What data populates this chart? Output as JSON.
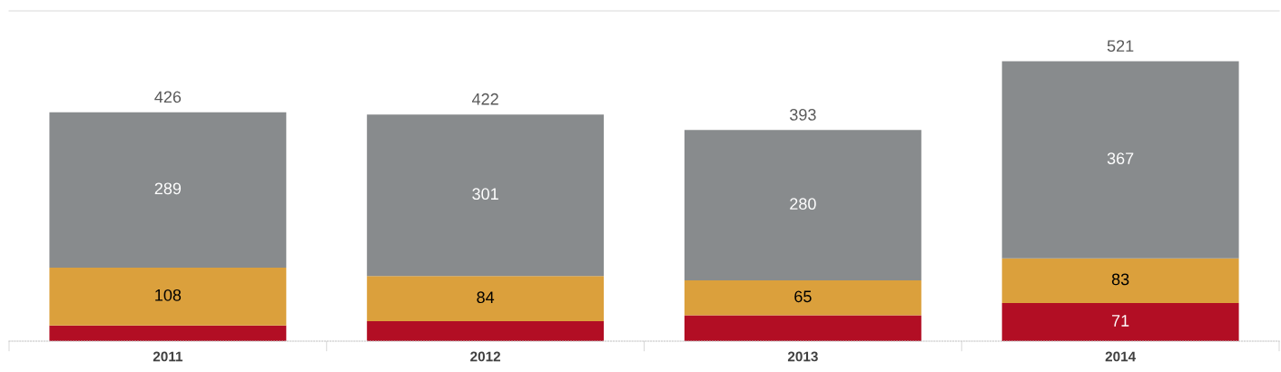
{
  "chart_data": {
    "type": "bar",
    "stacked": true,
    "data_labels": false,
    "grid": false,
    "legend": false,
    "tick_labels": "x",
    "categories": [
      "2011",
      "2012",
      "2013",
      "2014"
    ],
    "series": [
      {
        "color": "#b20e24",
        "values": [
          29,
          37,
          48,
          71
        ],
        "value_labels": [
          null,
          null,
          null,
          "71"
        ]
      },
      {
        "color": "#dba03c",
        "values": [
          108,
          84,
          65,
          83
        ],
        "value_labels": [
          "108",
          "84",
          "65",
          "83"
        ]
      },
      {
        "color": "#888b8d",
        "values": [
          289,
          301,
          280,
          367
        ],
        "value_labels": [
          "289",
          "301",
          "280",
          "367"
        ]
      }
    ],
    "totals": [
      "426",
      "422",
      "393",
      "521"
    ]
  }
}
